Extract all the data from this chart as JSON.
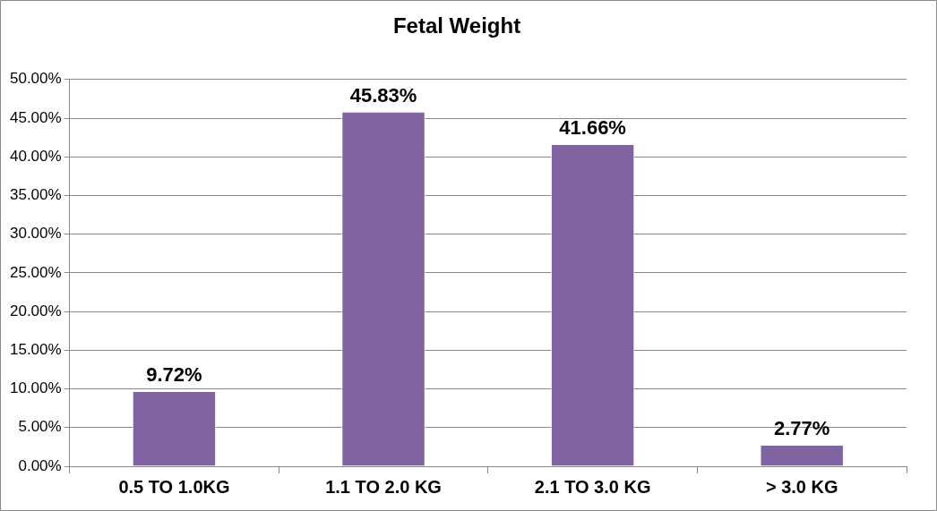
{
  "chart_data": {
    "type": "bar",
    "title": "Fetal Weight",
    "categories": [
      "0.5 TO 1.0KG",
      "1.1 TO 2.0 KG",
      "2.1 TO 3.0 KG",
      "> 3.0 KG"
    ],
    "values": [
      9.72,
      45.83,
      41.66,
      2.77
    ],
    "value_labels": [
      "9.72%",
      "45.83%",
      "41.66%",
      "2.77%"
    ],
    "color": "#8064a2",
    "ylim": [
      0,
      50
    ],
    "yticks": [
      {
        "value": 0,
        "label": "0.00%"
      },
      {
        "value": 5,
        "label": "5.00%"
      },
      {
        "value": 10,
        "label": "10.00%"
      },
      {
        "value": 15,
        "label": "15.00%"
      },
      {
        "value": 20,
        "label": "20.00%"
      },
      {
        "value": 25,
        "label": "25.00%"
      },
      {
        "value": 30,
        "label": "30.00%"
      },
      {
        "value": 35,
        "label": "35.00%"
      },
      {
        "value": 40,
        "label": "40.00%"
      },
      {
        "value": 45,
        "label": "45.00%"
      },
      {
        "value": 50,
        "label": "50.00%"
      }
    ],
    "grid": "y",
    "legend": false
  }
}
